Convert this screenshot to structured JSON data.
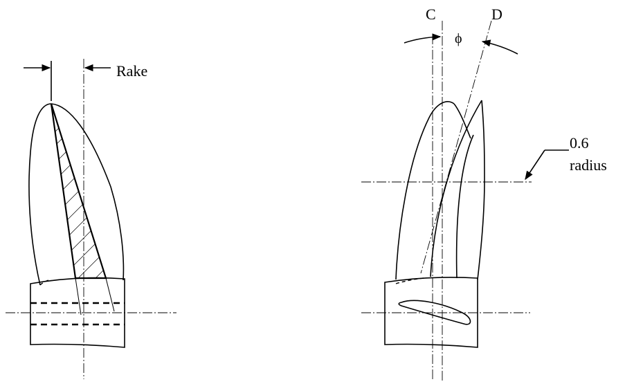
{
  "labels": {
    "rake": "Rake",
    "c": "C",
    "d": "D",
    "phi": "ϕ",
    "radius_value": "0.6",
    "radius_word": "radius"
  }
}
